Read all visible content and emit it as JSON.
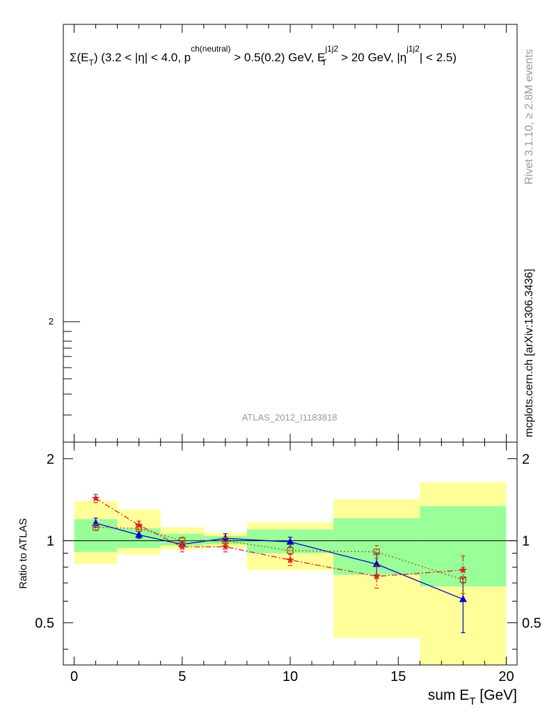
{
  "chart_data": [
    {
      "type": "line",
      "panel": "main",
      "title": "Σ(E_T) (3.2 < |η| < 4.0, p^ch(neutral) > 0.5(0.2) GeV, E_T^j1j2 > 20 GeV, |η^j1j2| < 2.5)",
      "title_parts": {
        "sigma": "Σ(E",
        "t_sub": "T",
        "mid1": ") (3.2 < |η| < 4.0, p",
        "ch_sup": "ch(neutral)",
        "mid2": " > 0.5(0.2) GeV, E",
        "e_sup": "j1j2",
        "e_sub": "T",
        "mid3": " > 20 GeV, |η",
        "eta_sup": "j1j2",
        "end": "| < 2.5)"
      },
      "y_scale": "log",
      "y_tick_labels": [
        "2"
      ],
      "analysis_label": "ATLAS_2012_I1183818",
      "series": []
    },
    {
      "type": "line",
      "panel": "ratio",
      "xlabel": "sum E_T [GeV]",
      "xlabel_parts": {
        "main": "sum E",
        "sub": "T",
        "unit": " [GeV]"
      },
      "ylabel": "Ratio to ATLAS",
      "xlim": [
        -0.5,
        20.5
      ],
      "ylim": [
        0.35,
        2.3
      ],
      "y_scale": "log",
      "x_ticks": [
        0,
        5,
        10,
        15,
        20
      ],
      "x_tick_labels": [
        "0",
        "5",
        "10",
        "15",
        "20"
      ],
      "y_ticks": [
        0.5,
        1,
        2
      ],
      "y_tick_labels": [
        "0.5",
        "1",
        "2"
      ],
      "bins": [
        {
          "lo": 0,
          "hi": 2,
          "stat_lo": 0.91,
          "stat_hi": 1.2,
          "tot_lo": 0.82,
          "tot_hi": 1.4
        },
        {
          "lo": 2,
          "hi": 4,
          "stat_lo": 0.94,
          "stat_hi": 1.11,
          "tot_lo": 0.89,
          "tot_hi": 1.3
        },
        {
          "lo": 4,
          "hi": 6,
          "stat_lo": 0.96,
          "stat_hi": 1.06,
          "tot_lo": 0.93,
          "tot_hi": 1.12
        },
        {
          "lo": 6,
          "hi": 8,
          "stat_lo": 0.97,
          "stat_hi": 1.04,
          "tot_lo": 0.94,
          "tot_hi": 1.07
        },
        {
          "lo": 8,
          "hi": 12,
          "stat_lo": 0.9,
          "stat_hi": 1.1,
          "tot_lo": 0.78,
          "tot_hi": 1.17
        },
        {
          "lo": 12,
          "hi": 16,
          "stat_lo": 0.75,
          "stat_hi": 1.21,
          "tot_lo": 0.44,
          "tot_hi": 1.42
        },
        {
          "lo": 16,
          "hi": 20,
          "stat_lo": 0.68,
          "stat_hi": 1.34,
          "tot_lo": 0.35,
          "tot_hi": 1.64
        }
      ],
      "series": [
        {
          "style": "solid",
          "color": "#0000cc",
          "marker": "triangle",
          "x": [
            1,
            3,
            5,
            7,
            10,
            14,
            18
          ],
          "y": [
            1.16,
            1.05,
            0.97,
            1.02,
            0.99,
            0.82,
            0.61
          ],
          "err_lo": [
            0.04,
            0.03,
            0.03,
            0.03,
            0.04,
            0.07,
            0.15
          ],
          "err_hi": [
            0.05,
            0.03,
            0.03,
            0.04,
            0.04,
            0.08,
            0.12
          ]
        },
        {
          "style": "dotted",
          "color": "#aa5500",
          "marker": "open-square",
          "x": [
            1,
            3,
            5,
            7,
            10,
            14,
            18
          ],
          "y": [
            1.12,
            1.11,
            1.0,
            1.0,
            0.92,
            0.91,
            0.72
          ],
          "err_lo": [
            0.03,
            0.03,
            0.03,
            0.03,
            0.03,
            0.05,
            0.08
          ],
          "err_hi": [
            0.03,
            0.03,
            0.03,
            0.03,
            0.03,
            0.05,
            0.08
          ]
        },
        {
          "style": "dashdot",
          "color": "#dd2222",
          "marker": "star",
          "x": [
            1,
            3,
            5,
            7,
            10,
            14,
            18
          ],
          "y": [
            1.43,
            1.14,
            0.95,
            0.95,
            0.85,
            0.74,
            0.78
          ],
          "err_lo": [
            0.05,
            0.04,
            0.04,
            0.04,
            0.04,
            0.07,
            0.08
          ],
          "err_hi": [
            0.05,
            0.04,
            0.04,
            0.04,
            0.04,
            0.07,
            0.1
          ]
        }
      ]
    }
  ],
  "side_labels": {
    "rivet": "Rivet 3.1.10, ≥ 2.8M events",
    "mcplots": "mcplots.cern.ch [arXiv:1306.3436]"
  },
  "colors": {
    "band_stat": "#99ff99",
    "band_total": "#ffff99",
    "axis": "#000000",
    "side_text": "#999999"
  }
}
